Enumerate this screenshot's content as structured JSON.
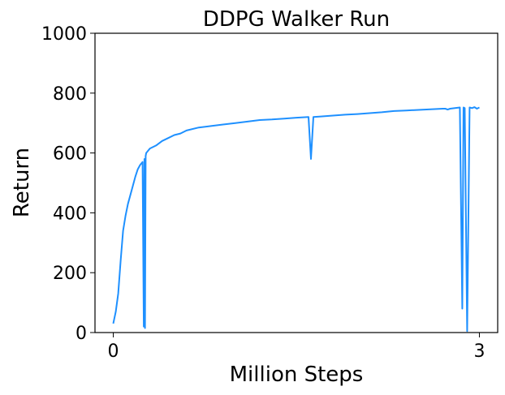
{
  "chart_data": {
    "type": "line",
    "title": "DDPG Walker Run",
    "xlabel": "Million Steps",
    "ylabel": "Return",
    "xlim": [
      -0.15,
      3.15
    ],
    "ylim": [
      0,
      1000
    ],
    "xticks": [
      0,
      3
    ],
    "yticks": [
      0,
      200,
      400,
      600,
      800,
      1000
    ],
    "x_tick_labels": [
      "0",
      "3"
    ],
    "y_tick_labels": [
      "0",
      "200",
      "400",
      "600",
      "800",
      "1000"
    ],
    "grid": false,
    "line_color": "#1e90ff",
    "series": [
      {
        "x": [
          0.0,
          0.02,
          0.04,
          0.06,
          0.08,
          0.1,
          0.12,
          0.14,
          0.16,
          0.18,
          0.2,
          0.22,
          0.24,
          0.25,
          0.255,
          0.26,
          0.265,
          0.27,
          0.3,
          0.35,
          0.4,
          0.45,
          0.5,
          0.55,
          0.6,
          0.7,
          0.8,
          0.9,
          1.0,
          1.1,
          1.2,
          1.3,
          1.4,
          1.5,
          1.6,
          1.62,
          1.64,
          1.7,
          1.8,
          1.9,
          2.0,
          2.1,
          2.2,
          2.3,
          2.4,
          2.5,
          2.6,
          2.7,
          2.72,
          2.74,
          2.76,
          2.8,
          2.84,
          2.86,
          2.87,
          2.88,
          2.9,
          2.92,
          2.94,
          2.96,
          2.98,
          3.0
        ],
        "y": [
          30,
          70,
          130,
          240,
          340,
          390,
          430,
          460,
          490,
          520,
          545,
          560,
          570,
          20,
          580,
          15,
          590,
          600,
          615,
          625,
          640,
          650,
          660,
          665,
          675,
          685,
          690,
          695,
          700,
          705,
          710,
          712,
          715,
          718,
          720,
          580,
          720,
          722,
          725,
          728,
          730,
          733,
          736,
          740,
          742,
          744,
          746,
          748,
          748,
          745,
          748,
          750,
          752,
          80,
          752,
          750,
          5,
          752,
          750,
          753,
          748,
          752
        ]
      }
    ]
  }
}
